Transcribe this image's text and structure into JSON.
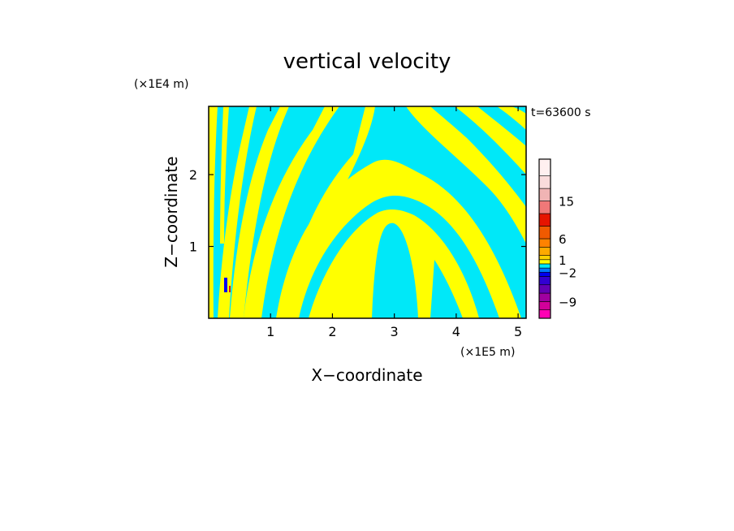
{
  "chart_data": {
    "type": "heatmap",
    "title": "vertical velocity",
    "xlabel": "X−coordinate",
    "ylabel": "Z−coordinate",
    "x_unit": "(×1E5 m)",
    "y_unit": "(×1E4 m)",
    "time_label": "t=63600 s",
    "xlim": [
      0,
      5.13
    ],
    "ylim": [
      0,
      2.95
    ],
    "x_ticks": [
      {
        "value": 1,
        "label": "1"
      },
      {
        "value": 2,
        "label": "2"
      },
      {
        "value": 3,
        "label": "3"
      },
      {
        "value": 4,
        "label": "4"
      },
      {
        "value": 5,
        "label": "5"
      }
    ],
    "y_ticks": [
      {
        "value": 1,
        "label": "1"
      },
      {
        "value": 2,
        "label": "2"
      }
    ],
    "field_colors": {
      "negative": "#00e8f8",
      "positive": "#ffff00"
    },
    "colorbar": {
      "range": [
        -13,
        25
      ],
      "bands": [
        {
          "from": -13,
          "to": -11,
          "color": "#ff00b4"
        },
        {
          "from": -11,
          "to": -9,
          "color": "#d2009a"
        },
        {
          "from": -9,
          "to": -7,
          "color": "#a000a0"
        },
        {
          "from": -7,
          "to": -5,
          "color": "#6400b4"
        },
        {
          "from": -5,
          "to": -3,
          "color": "#3200d2"
        },
        {
          "from": -3,
          "to": -2,
          "color": "#0000f0"
        },
        {
          "from": -2,
          "to": -1,
          "color": "#0078ff"
        },
        {
          "from": -1,
          "to": 0,
          "color": "#00e8f8"
        },
        {
          "from": 0,
          "to": 1,
          "color": "#ffff00"
        },
        {
          "from": 1,
          "to": 2,
          "color": "#ffd200"
        },
        {
          "from": 2,
          "to": 4,
          "color": "#ffaa00"
        },
        {
          "from": 4,
          "to": 6,
          "color": "#ff8200"
        },
        {
          "from": 6,
          "to": 9,
          "color": "#f05a00"
        },
        {
          "from": 9,
          "to": 12,
          "color": "#e61400"
        },
        {
          "from": 12,
          "to": 15,
          "color": "#f07878"
        },
        {
          "from": 15,
          "to": 18,
          "color": "#f0b4b4"
        },
        {
          "from": 18,
          "to": 21,
          "color": "#fadcdc"
        },
        {
          "from": 21,
          "to": 25,
          "color": "#fff0f0"
        }
      ],
      "tick_labels": [
        {
          "value": 15,
          "label": "15"
        },
        {
          "value": 6,
          "label": "6"
        },
        {
          "value": 1,
          "label": "1"
        },
        {
          "value": -2,
          "label": "−2"
        },
        {
          "value": -9,
          "label": "−9"
        }
      ]
    }
  }
}
